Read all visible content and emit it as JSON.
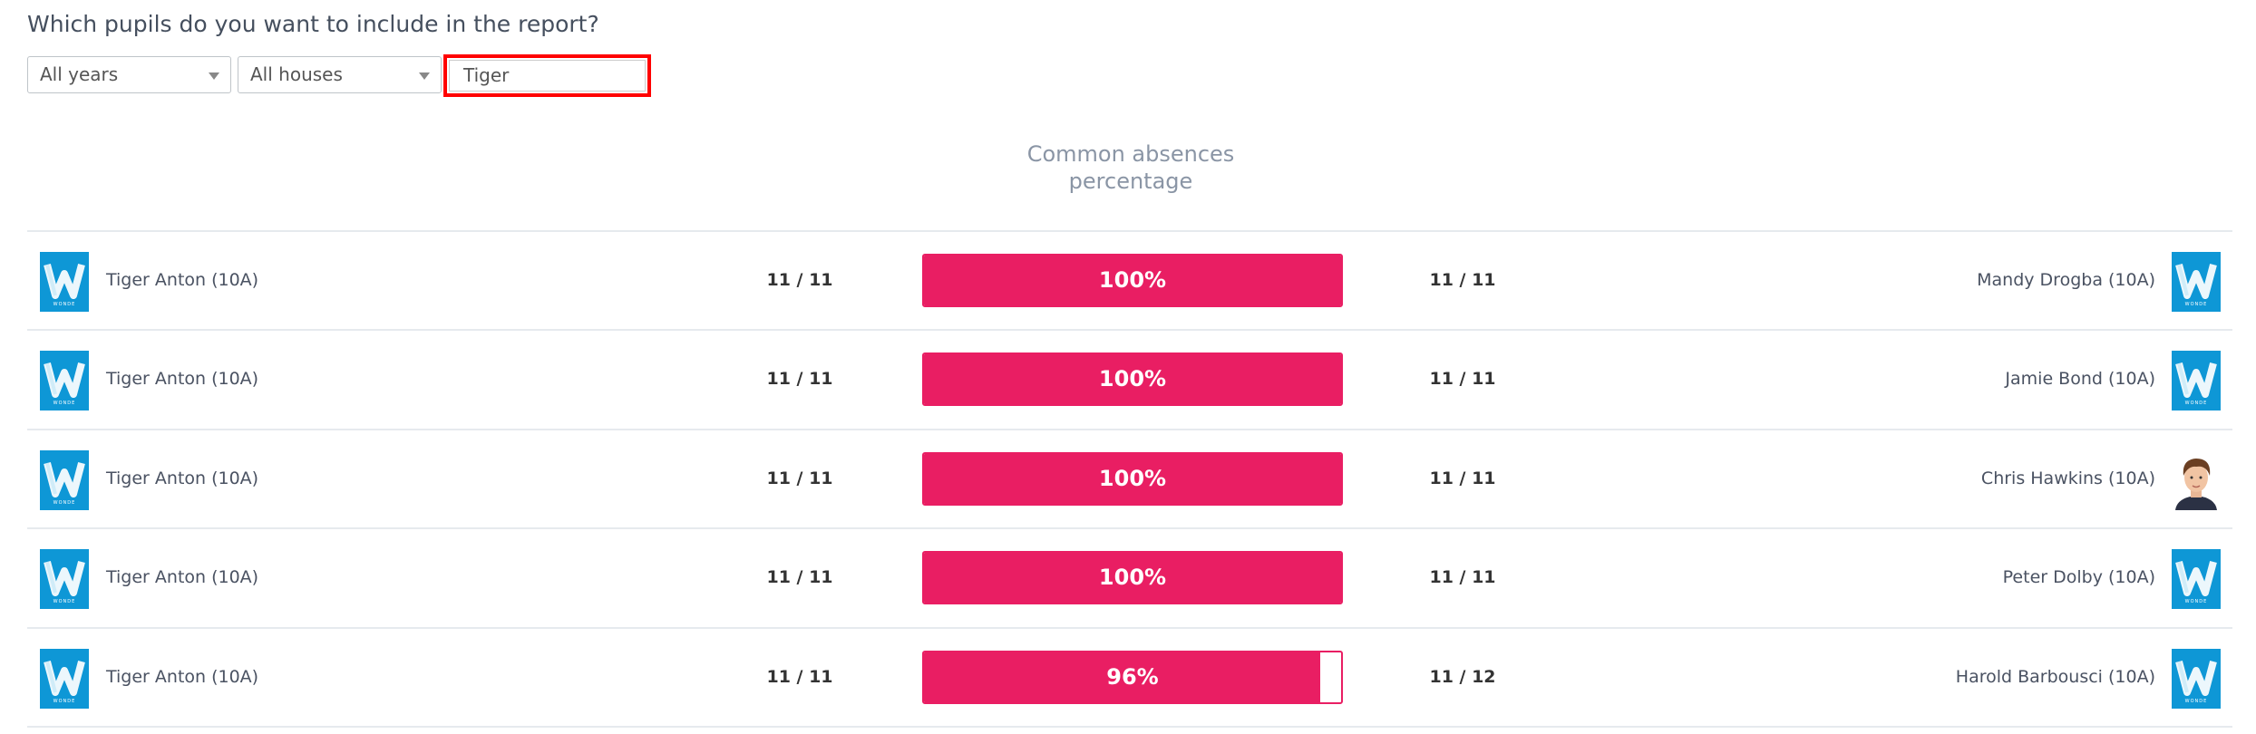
{
  "filters": {
    "question": "Which pupils do you want to include in the report?",
    "year_select": "All years",
    "house_select": "All houses",
    "search_value": "Tiger"
  },
  "table": {
    "column_header_line1": "Common absences",
    "column_header_line2": "percentage",
    "accent_color": "#e91e63",
    "rows": [
      {
        "left_name": "Tiger Anton (10A)",
        "left_avatar": "wonde-logo",
        "left_count": "11 / 11",
        "percent": 100,
        "percent_label": "100%",
        "right_count": "11 / 11",
        "right_name": "Mandy Drogba (10A)",
        "right_avatar": "wonde-logo"
      },
      {
        "left_name": "Tiger Anton (10A)",
        "left_avatar": "wonde-logo",
        "left_count": "11 / 11",
        "percent": 100,
        "percent_label": "100%",
        "right_count": "11 / 11",
        "right_name": "Jamie Bond (10A)",
        "right_avatar": "wonde-logo"
      },
      {
        "left_name": "Tiger Anton (10A)",
        "left_avatar": "wonde-logo",
        "left_count": "11 / 11",
        "percent": 100,
        "percent_label": "100%",
        "right_count": "11 / 11",
        "right_name": "Chris Hawkins (10A)",
        "right_avatar": "photo"
      },
      {
        "left_name": "Tiger Anton (10A)",
        "left_avatar": "wonde-logo",
        "left_count": "11 / 11",
        "percent": 100,
        "percent_label": "100%",
        "right_count": "11 / 11",
        "right_name": "Peter Dolby (10A)",
        "right_avatar": "wonde-logo"
      },
      {
        "left_name": "Tiger Anton (10A)",
        "left_avatar": "wonde-logo",
        "left_count": "11 / 11",
        "percent": 96,
        "percent_label": "96%",
        "right_count": "11 / 12",
        "right_name": "Harold Barbousci (10A)",
        "right_avatar": "wonde-logo"
      }
    ]
  }
}
